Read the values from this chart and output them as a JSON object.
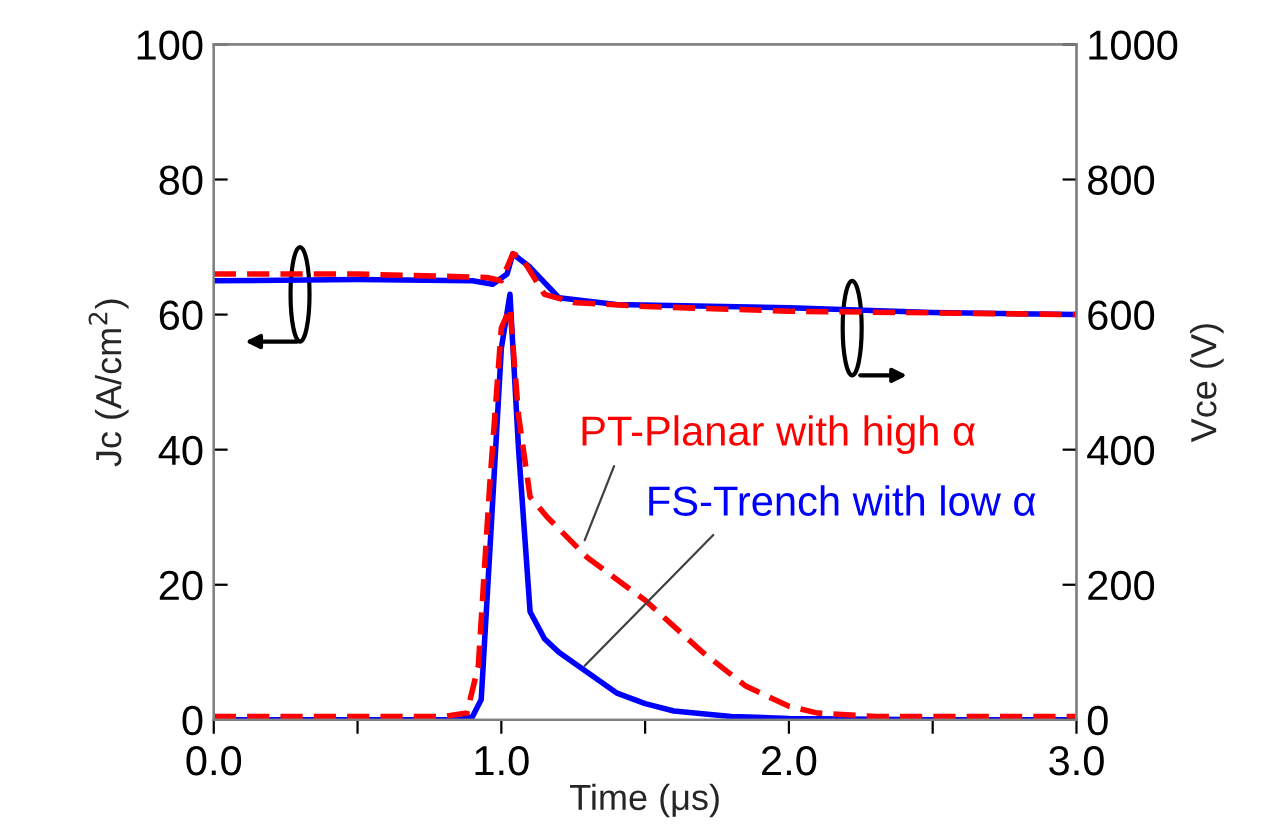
{
  "chart_data": {
    "type": "line",
    "xlabel": "Time (μs)",
    "ylabel": "Jc (A/cm$^{2}$)",
    "y2label": "Vce (V)",
    "xlim": [
      0,
      3.0
    ],
    "xticks": [
      {
        "value": 0,
        "label": "0.0"
      },
      {
        "value": 0.5,
        "label": null
      },
      {
        "value": 1.0,
        "label": "1.0"
      },
      {
        "value": 1.5,
        "label": null
      },
      {
        "value": 2.0,
        "label": "2.0"
      },
      {
        "value": 2.5,
        "label": null
      },
      {
        "value": 3.0,
        "label": "3.0"
      }
    ],
    "ylim": [
      0,
      100
    ],
    "yticks": [
      0,
      20,
      40,
      60,
      80,
      100
    ],
    "y2lim": [
      0,
      1000
    ],
    "y2ticks": [
      0,
      200,
      400,
      600,
      800,
      1000
    ],
    "grid": false,
    "legend": false,
    "series": [
      {
        "color": "#0000ff",
        "line_style": "solid",
        "x": [
          0,
          0.85,
          0.9,
          0.93,
          0.96,
          1.0,
          1.03,
          1.06,
          1.1,
          1.15,
          1.2,
          1.3,
          1.4,
          1.5,
          1.6,
          1.8,
          2.0,
          2.5,
          3.0
        ],
        "values": [
          0,
          0,
          0.5,
          3,
          25,
          55,
          63,
          40,
          16,
          12,
          10,
          7,
          4,
          2.4,
          1.3,
          0.5,
          0.2,
          0,
          0
        ]
      },
      {
        "color": "#ff0000",
        "line_style": "dashed",
        "x": [
          0,
          0.8,
          0.88,
          0.92,
          0.96,
          1.0,
          1.03,
          1.06,
          1.1,
          1.16,
          1.3,
          1.5,
          1.7,
          1.85,
          2.0,
          2.1,
          2.3,
          2.6,
          3.0
        ],
        "values": [
          0.5,
          0.5,
          1,
          8,
          35,
          58,
          61,
          45,
          33,
          30,
          24,
          17.7,
          10,
          5,
          2,
          1,
          0.5,
          0.5,
          0.5
        ]
      },
      {
        "color": "#0000ff",
        "line_style": "solid",
        "axis": "y2",
        "x": [
          0,
          0.5,
          0.9,
          0.97,
          1.02,
          1.04,
          1.1,
          1.2,
          1.4,
          2.0,
          2.5,
          3.0
        ],
        "values": [
          650,
          652,
          650,
          645,
          660,
          690,
          670,
          625,
          615,
          610,
          603,
          600
        ]
      },
      {
        "color": "#ff0000",
        "line_style": "dashed",
        "axis": "y2",
        "x": [
          0,
          0.5,
          0.95,
          1.0,
          1.04,
          1.07,
          1.15,
          1.25,
          1.5,
          2.0,
          3.0
        ],
        "values": [
          660,
          660,
          655,
          650,
          690,
          685,
          630,
          618,
          612,
          605,
          600
        ]
      }
    ],
    "annotations": [
      {
        "text": "PT-Planar with high α",
        "x": 1.29,
        "y": 26.6
      },
      {
        "text": "FS-Trench with low α",
        "x": 1.29,
        "y": 8
      }
    ]
  }
}
